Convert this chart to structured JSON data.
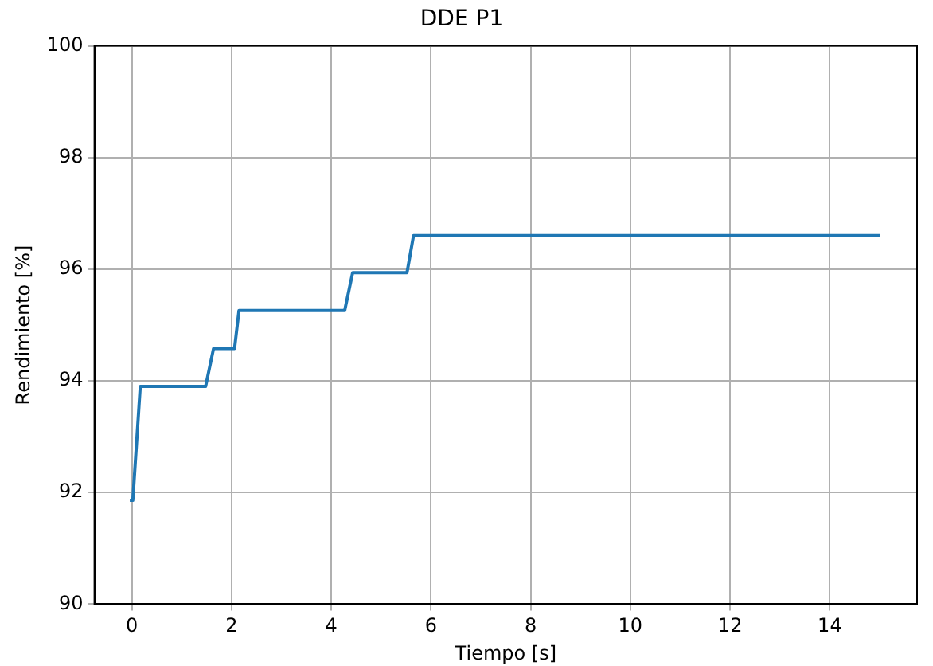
{
  "chart_data": {
    "type": "line",
    "title": "DDE P1",
    "xlabel": "Tiempo [s]",
    "ylabel": "Rendimiento [%]",
    "series": [
      {
        "color": "#1f77b4",
        "x": [
          -0.04,
          0.02,
          0.17,
          1.48,
          1.64,
          2.06,
          2.15,
          4.27,
          4.43,
          5.52,
          5.65,
          15
        ],
        "values": [
          91.86,
          91.86,
          93.9,
          93.9,
          94.58,
          94.58,
          95.26,
          95.26,
          95.94,
          95.94,
          96.6,
          96.6
        ]
      }
    ],
    "xlim": [
      -0.75,
      15.75
    ],
    "xticks": [
      0,
      2,
      4,
      6,
      8,
      10,
      12,
      14
    ],
    "ylim": [
      90,
      100
    ],
    "yticks": [
      90,
      92,
      94,
      96,
      98,
      100
    ],
    "grid": true,
    "legend": false,
    "marker": "none",
    "line_style": "solid"
  }
}
